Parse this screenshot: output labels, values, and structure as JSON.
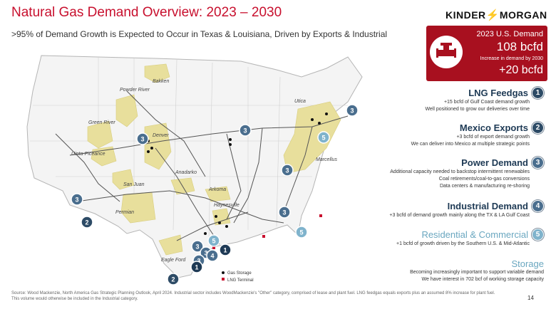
{
  "header": {
    "title": "Natural Gas Demand Overview: 2023 – 2030",
    "subtitle": ">95% of Demand Growth is Expected to Occur in Texas & Louisiana, Driven by Exports & Industrial",
    "logo_left": "KINDER",
    "logo_right": "MORGAN"
  },
  "stat_box": {
    "label": "2023 U.S. Demand",
    "value": "108 bcfd",
    "increase_label": "Increase in demand by 2030",
    "increase_value": "+20 bcfd",
    "icon": "pipeline-icon"
  },
  "categories": [
    {
      "title": "LNG Feedgas",
      "badge": "1",
      "lines": [
        "+15 bcfd of Gulf Coast demand growth",
        "Well positioned to grow our deliveries over time"
      ]
    },
    {
      "title": "Mexico Exports",
      "badge": "2",
      "lines": [
        "+3 bcfd of export demand growth",
        "We can deliver into Mexico at multiple strategic points"
      ]
    },
    {
      "title": "Power Demand",
      "badge": "3",
      "lines": [
        "Additional capacity needed to backstop intermittent renewables",
        "Coal retirements/coal-to-gas conversions",
        "Data centers & manufacturing re-shoring"
      ]
    },
    {
      "title": "Industrial Demand",
      "badge": "4",
      "lines": [
        "+3 bcfd of demand growth mainly along the TX & LA Gulf Coast"
      ]
    },
    {
      "title": "Residential & Commercial",
      "badge": "5",
      "lines": [
        "+1 bcfd of growth driven by the Southern U.S. & Mid-Atlantic"
      ]
    },
    {
      "title": "Storage",
      "badge": "",
      "lines": [
        "Becoming increasingly important to support variable demand",
        "We have interest in 702 bcf of working storage capacity"
      ]
    }
  ],
  "map": {
    "basins": [
      "Bakken",
      "Powder River",
      "Green River",
      "Denver",
      "Uinta-Piceance",
      "San Juan",
      "Anadarko",
      "Arkoma",
      "Permian",
      "Haynesville",
      "Eagle Ford",
      "Utica",
      "Marcellus"
    ],
    "markers": [
      "3",
      "3",
      "3",
      "3",
      "2",
      "3",
      "3",
      "3",
      "3",
      "5",
      "5",
      "5",
      "3",
      "4",
      "1",
      "1",
      "2"
    ],
    "legend": {
      "storage": "Gas Storage",
      "lng": "LNG Terminal"
    }
  },
  "footer": {
    "source": "Source: Wood Mackenzie, North America Gas Strategic Planning Outlook, April 2024. Industrial sector includes WoodMackenzie's \"Other\" category, comprised of lease and plant fuel. LNG feedgas equals exports plus an assumed 8% increase for plant fuel. This volume would otherwise be included in the Industrial category.",
    "page": "14"
  },
  "colors": {
    "accent": "#c8102e",
    "navy": "#1e3a55",
    "badge_dark": "#2d4b66",
    "badge_light": "#7fb3cc",
    "basin": "#e8df9c"
  }
}
